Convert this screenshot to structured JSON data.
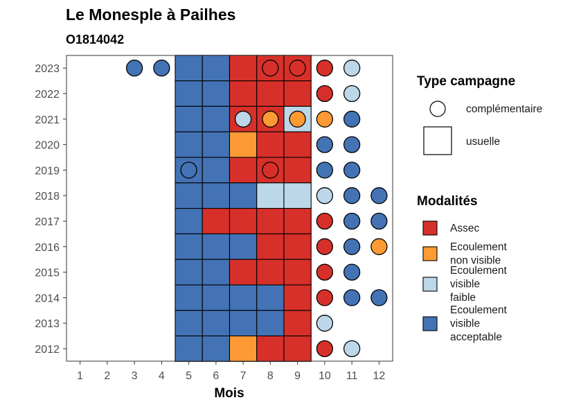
{
  "chart_data": {
    "type": "heatmap",
    "title": "Le Monesple à Pailhes",
    "subtitle": "O1814042",
    "xlabel": "Mois",
    "ylabel": "",
    "x_ticks": [
      1,
      2,
      3,
      4,
      5,
      6,
      7,
      8,
      9,
      10,
      11,
      12
    ],
    "y_ticks": [
      2012,
      2013,
      2014,
      2015,
      2016,
      2017,
      2018,
      2019,
      2020,
      2021,
      2022,
      2023
    ],
    "grid": false,
    "legend_placement": "right",
    "campaign_legend": {
      "title": "Type campagne",
      "items": [
        {
          "key": "complementaire",
          "label": "complémentaire"
        },
        {
          "key": "usuelle",
          "label": "usuelle"
        }
      ]
    },
    "modality_legend": {
      "title": "Modalités",
      "items": [
        {
          "key": "A",
          "lines": [
            "Assec"
          ],
          "color": "#d7302a"
        },
        {
          "key": "N",
          "lines": [
            "Ecoulement",
            "non visible"
          ],
          "color": "#fd9a33"
        },
        {
          "key": "F",
          "lines": [
            "Ecoulement",
            "visible",
            "faible"
          ],
          "color": "#bcd7e9"
        },
        {
          "key": "V",
          "lines": [
            "Ecoulement",
            "visible",
            "acceptable"
          ],
          "color": "#4373b5"
        }
      ]
    },
    "colors": {
      "A": "#d7302a",
      "N": "#fd9a33",
      "F": "#bcd7e9",
      "V": "#4373b5"
    },
    "usuelle": [
      {
        "year": 2023,
        "months": [
          "V",
          "V",
          "A",
          "A",
          "A"
        ]
      },
      {
        "year": 2022,
        "months": [
          "V",
          "V",
          "A",
          "A",
          "A"
        ]
      },
      {
        "year": 2021,
        "months": [
          "V",
          "V",
          "A",
          "A",
          "F"
        ]
      },
      {
        "year": 2020,
        "months": [
          "V",
          "V",
          "N",
          "A",
          "A"
        ]
      },
      {
        "year": 2019,
        "months": [
          "V",
          "V",
          "A",
          "A",
          "A"
        ]
      },
      {
        "year": 2018,
        "months": [
          "V",
          "V",
          "V",
          "F",
          "F"
        ]
      },
      {
        "year": 2017,
        "months": [
          "V",
          "A",
          "A",
          "A",
          "A"
        ]
      },
      {
        "year": 2016,
        "months": [
          "V",
          "V",
          "V",
          "A",
          "A"
        ]
      },
      {
        "year": 2015,
        "months": [
          "V",
          "V",
          "A",
          "A",
          "A"
        ]
      },
      {
        "year": 2014,
        "months": [
          "V",
          "V",
          "V",
          "V",
          "A"
        ]
      },
      {
        "year": 2013,
        "months": [
          "V",
          "V",
          "V",
          "V",
          "A"
        ]
      },
      {
        "year": 2012,
        "months": [
          "V",
          "V",
          "N",
          "A",
          "A"
        ]
      }
    ],
    "usuelle_months": [
      5,
      6,
      7,
      8,
      9
    ],
    "complementaire": [
      {
        "year": 2023,
        "month": 3,
        "value": "V"
      },
      {
        "year": 2023,
        "month": 4,
        "value": "V"
      },
      {
        "year": 2023,
        "month": 8,
        "value": "A"
      },
      {
        "year": 2023,
        "month": 9,
        "value": "A"
      },
      {
        "year": 2023,
        "month": 10,
        "value": "A"
      },
      {
        "year": 2023,
        "month": 11,
        "value": "F"
      },
      {
        "year": 2022,
        "month": 10,
        "value": "A"
      },
      {
        "year": 2022,
        "month": 11,
        "value": "F"
      },
      {
        "year": 2021,
        "month": 7,
        "value": "F"
      },
      {
        "year": 2021,
        "month": 8,
        "value": "N"
      },
      {
        "year": 2021,
        "month": 9,
        "value": "N"
      },
      {
        "year": 2021,
        "month": 10,
        "value": "N"
      },
      {
        "year": 2021,
        "month": 11,
        "value": "V"
      },
      {
        "year": 2020,
        "month": 10,
        "value": "V"
      },
      {
        "year": 2020,
        "month": 11,
        "value": "V"
      },
      {
        "year": 2019,
        "month": 5,
        "value": "V"
      },
      {
        "year": 2019,
        "month": 8,
        "value": "A"
      },
      {
        "year": 2019,
        "month": 10,
        "value": "V"
      },
      {
        "year": 2019,
        "month": 11,
        "value": "V"
      },
      {
        "year": 2018,
        "month": 10,
        "value": "F"
      },
      {
        "year": 2018,
        "month": 11,
        "value": "V"
      },
      {
        "year": 2018,
        "month": 12,
        "value": "V"
      },
      {
        "year": 2017,
        "month": 10,
        "value": "A"
      },
      {
        "year": 2017,
        "month": 11,
        "value": "V"
      },
      {
        "year": 2017,
        "month": 12,
        "value": "V"
      },
      {
        "year": 2016,
        "month": 10,
        "value": "A"
      },
      {
        "year": 2016,
        "month": 11,
        "value": "V"
      },
      {
        "year": 2016,
        "month": 12,
        "value": "N"
      },
      {
        "year": 2015,
        "month": 10,
        "value": "A"
      },
      {
        "year": 2015,
        "month": 11,
        "value": "V"
      },
      {
        "year": 2014,
        "month": 10,
        "value": "A"
      },
      {
        "year": 2014,
        "month": 11,
        "value": "V"
      },
      {
        "year": 2014,
        "month": 12,
        "value": "V"
      },
      {
        "year": 2013,
        "month": 10,
        "value": "F"
      },
      {
        "year": 2012,
        "month": 10,
        "value": "A"
      },
      {
        "year": 2012,
        "month": 11,
        "value": "F"
      }
    ]
  }
}
